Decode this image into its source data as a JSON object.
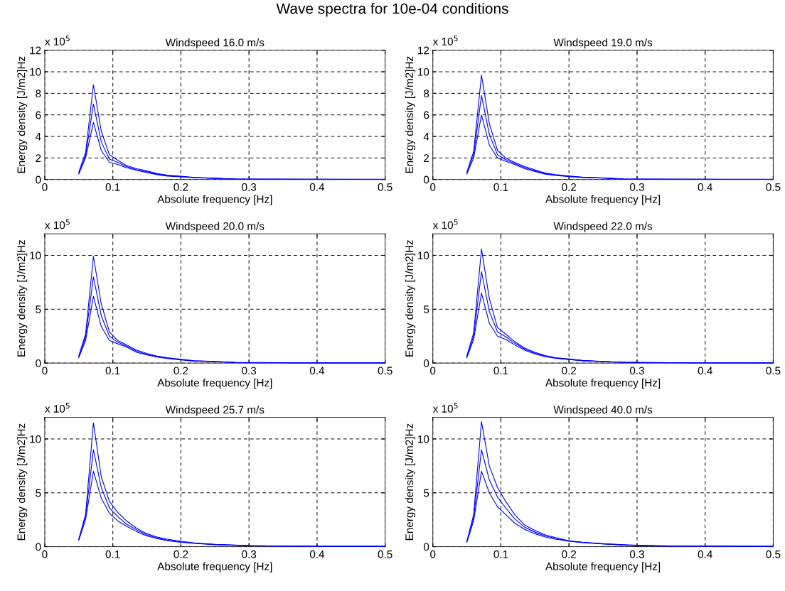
{
  "chart_data": [
    {
      "type": "line",
      "title": "Windspeed 16.0 m/s",
      "xlabel": "Absolute frequency [Hz]",
      "ylabel": "Energy density [J/m2]Hz",
      "annotations": [
        "x 10$^{5}$",
        "Wave spectra for 10e-04 conditions"
      ],
      "x": [
        0.05,
        0.06,
        0.0715,
        0.083,
        0.095,
        0.107,
        0.12,
        0.135,
        0.15,
        0.165,
        0.18,
        0.2,
        0.22,
        0.25,
        0.28,
        0.3,
        0.35,
        0.4,
        0.5
      ],
      "xlim": [
        0,
        0.5
      ],
      "xticks": [
        0,
        0.1,
        0.2,
        0.3,
        0.4,
        0.5
      ],
      "ylim": [
        0,
        12
      ],
      "yticks": [
        0,
        2,
        4,
        6,
        8,
        10,
        12
      ],
      "grid": true,
      "line_style": "solid",
      "series": [
        {
          "color": "#0000ff",
          "values": [
            0.7,
            2.5,
            8.8,
            4.5,
            2.3,
            1.8,
            1.3,
            1.0,
            0.8,
            0.55,
            0.4,
            0.3,
            0.2,
            0.12,
            0.05,
            0.04,
            0.03,
            0.02,
            0.02
          ]
        },
        {
          "color": "#0000ff",
          "values": [
            0.6,
            2.2,
            7.0,
            3.5,
            1.9,
            1.6,
            1.2,
            0.9,
            0.72,
            0.5,
            0.36,
            0.27,
            0.18,
            0.11,
            0.04,
            0.03,
            0.02,
            0.02,
            0.01
          ]
        },
        {
          "color": "#0000ff",
          "values": [
            0.5,
            2.0,
            5.3,
            2.7,
            1.6,
            1.4,
            1.1,
            0.85,
            0.65,
            0.45,
            0.32,
            0.25,
            0.17,
            0.1,
            0.04,
            0.03,
            0.02,
            0.01,
            0.01
          ]
        }
      ]
    },
    {
      "type": "line",
      "title": "Windspeed 19.0 m/s",
      "xlabel": "Absolute frequency [Hz]",
      "ylabel": "Energy density [J/m2]Hz",
      "annotations": [
        "x 10$^{5}$"
      ],
      "x": [
        0.05,
        0.06,
        0.0715,
        0.083,
        0.095,
        0.107,
        0.12,
        0.135,
        0.15,
        0.165,
        0.18,
        0.2,
        0.22,
        0.25,
        0.28,
        0.3,
        0.35,
        0.4,
        0.5
      ],
      "xlim": [
        0,
        0.5
      ],
      "xticks": [
        0,
        0.1,
        0.2,
        0.3,
        0.4,
        0.5
      ],
      "ylim": [
        0,
        12
      ],
      "yticks": [
        0,
        2,
        4,
        6,
        8,
        10,
        12
      ],
      "grid": true,
      "line_style": "solid",
      "series": [
        {
          "color": "#0000ff",
          "values": [
            0.7,
            2.6,
            9.7,
            5.2,
            2.7,
            2.0,
            1.6,
            1.2,
            0.9,
            0.6,
            0.45,
            0.32,
            0.22,
            0.15,
            0.06,
            0.04,
            0.03,
            0.02,
            0.02
          ]
        },
        {
          "color": "#0000ff",
          "values": [
            0.6,
            2.3,
            7.8,
            4.2,
            2.3,
            1.85,
            1.5,
            1.1,
            0.82,
            0.55,
            0.41,
            0.3,
            0.2,
            0.14,
            0.05,
            0.03,
            0.02,
            0.02,
            0.01
          ]
        },
        {
          "color": "#0000ff",
          "values": [
            0.5,
            2.0,
            6.0,
            3.2,
            2.0,
            1.7,
            1.4,
            1.0,
            0.75,
            0.5,
            0.38,
            0.27,
            0.19,
            0.13,
            0.04,
            0.03,
            0.02,
            0.01,
            0.01
          ]
        }
      ]
    },
    {
      "type": "line",
      "title": "Windspeed 20.0 m/s",
      "xlabel": "Absolute frequency [Hz]",
      "ylabel": "Energy density [J/m2]Hz",
      "annotations": [
        "x 10$^{5}$"
      ],
      "x": [
        0.05,
        0.06,
        0.0715,
        0.083,
        0.095,
        0.107,
        0.12,
        0.135,
        0.15,
        0.165,
        0.18,
        0.2,
        0.22,
        0.25,
        0.28,
        0.3,
        0.35,
        0.4,
        0.5
      ],
      "xlim": [
        0,
        0.5
      ],
      "xticks": [
        0,
        0.1,
        0.2,
        0.3,
        0.4,
        0.5
      ],
      "ylim": [
        0,
        12
      ],
      "yticks": [
        0,
        5,
        10
      ],
      "grid": true,
      "line_style": "solid",
      "series": [
        {
          "color": "#0000ff",
          "values": [
            0.7,
            2.7,
            9.9,
            5.5,
            2.9,
            2.1,
            1.7,
            1.2,
            0.9,
            0.65,
            0.5,
            0.35,
            0.22,
            0.15,
            0.07,
            0.05,
            0.04,
            0.03,
            0.02
          ]
        },
        {
          "color": "#0000ff",
          "values": [
            0.6,
            2.4,
            8.0,
            4.4,
            2.5,
            1.95,
            1.6,
            1.1,
            0.82,
            0.6,
            0.46,
            0.32,
            0.2,
            0.14,
            0.06,
            0.04,
            0.03,
            0.02,
            0.02
          ]
        },
        {
          "color": "#0000ff",
          "values": [
            0.5,
            2.1,
            6.2,
            3.4,
            2.1,
            1.8,
            1.5,
            1.0,
            0.75,
            0.55,
            0.42,
            0.3,
            0.18,
            0.13,
            0.05,
            0.04,
            0.03,
            0.02,
            0.01
          ]
        }
      ]
    },
    {
      "type": "line",
      "title": "Windspeed 22.0 m/s",
      "xlabel": "Absolute frequency [Hz]",
      "ylabel": "Energy density [J/m2]Hz",
      "annotations": [
        "x 10$^{5}$"
      ],
      "x": [
        0.05,
        0.06,
        0.0715,
        0.083,
        0.095,
        0.107,
        0.12,
        0.135,
        0.15,
        0.165,
        0.18,
        0.2,
        0.22,
        0.25,
        0.28,
        0.3,
        0.35,
        0.4,
        0.5
      ],
      "xlim": [
        0,
        0.5
      ],
      "xticks": [
        0,
        0.1,
        0.2,
        0.3,
        0.4,
        0.5
      ],
      "ylim": [
        0,
        12
      ],
      "yticks": [
        0,
        5,
        10
      ],
      "grid": true,
      "line_style": "solid",
      "series": [
        {
          "color": "#0000ff",
          "values": [
            0.7,
            2.8,
            10.6,
            6.0,
            3.3,
            2.7,
            2.0,
            1.4,
            1.0,
            0.7,
            0.5,
            0.38,
            0.25,
            0.15,
            0.08,
            0.06,
            0.04,
            0.03,
            0.02
          ]
        },
        {
          "color": "#0000ff",
          "values": [
            0.6,
            2.5,
            8.5,
            4.8,
            2.9,
            2.45,
            1.85,
            1.3,
            0.92,
            0.65,
            0.48,
            0.35,
            0.23,
            0.14,
            0.07,
            0.05,
            0.04,
            0.03,
            0.02
          ]
        },
        {
          "color": "#0000ff",
          "values": [
            0.5,
            2.2,
            6.5,
            3.7,
            2.5,
            2.2,
            1.7,
            1.2,
            0.85,
            0.6,
            0.45,
            0.32,
            0.21,
            0.13,
            0.06,
            0.05,
            0.03,
            0.02,
            0.01
          ]
        }
      ]
    },
    {
      "type": "line",
      "title": "Windspeed 25.7 m/s",
      "xlabel": "Absolute frequency [Hz]",
      "ylabel": "Energy density [J/m2]Hz",
      "annotations": [
        "x 10$^{5}$"
      ],
      "x": [
        0.05,
        0.06,
        0.0715,
        0.083,
        0.095,
        0.107,
        0.12,
        0.135,
        0.15,
        0.165,
        0.18,
        0.2,
        0.22,
        0.25,
        0.28,
        0.3,
        0.35,
        0.4,
        0.5
      ],
      "xlim": [
        0,
        0.5
      ],
      "xticks": [
        0,
        0.1,
        0.2,
        0.3,
        0.4,
        0.5
      ],
      "ylim": [
        0,
        12
      ],
      "yticks": [
        0,
        5,
        10
      ],
      "grid": true,
      "line_style": "solid",
      "series": [
        {
          "color": "#0000ff",
          "values": [
            0.7,
            3.0,
            11.5,
            6.5,
            4.2,
            3.2,
            2.4,
            1.7,
            1.2,
            0.9,
            0.7,
            0.5,
            0.35,
            0.22,
            0.15,
            0.1,
            0.06,
            0.04,
            0.03
          ]
        },
        {
          "color": "#0000ff",
          "values": [
            0.65,
            2.8,
            9.0,
            5.5,
            3.6,
            2.8,
            2.1,
            1.55,
            1.1,
            0.82,
            0.62,
            0.45,
            0.32,
            0.2,
            0.13,
            0.09,
            0.05,
            0.04,
            0.03
          ]
        },
        {
          "color": "#0000ff",
          "values": [
            0.6,
            2.5,
            7.0,
            4.5,
            3.1,
            2.4,
            1.9,
            1.4,
            1.0,
            0.75,
            0.55,
            0.4,
            0.3,
            0.18,
            0.12,
            0.08,
            0.05,
            0.03,
            0.02
          ]
        }
      ]
    },
    {
      "type": "line",
      "title": "Windspeed 40.0 m/s",
      "xlabel": "Absolute frequency [Hz]",
      "ylabel": "Energy density [J/m2]Hz",
      "annotations": [
        "x 10$^{5}$"
      ],
      "x": [
        0.05,
        0.06,
        0.0715,
        0.083,
        0.095,
        0.107,
        0.12,
        0.135,
        0.15,
        0.165,
        0.18,
        0.2,
        0.22,
        0.25,
        0.28,
        0.3,
        0.35,
        0.4,
        0.5
      ],
      "xlim": [
        0,
        0.5
      ],
      "xticks": [
        0,
        0.1,
        0.2,
        0.3,
        0.4,
        0.5
      ],
      "ylim": [
        0,
        12
      ],
      "yticks": [
        0,
        5,
        10
      ],
      "grid": true,
      "line_style": "solid",
      "series": [
        {
          "color": "#0000ff",
          "values": [
            0.5,
            3.0,
            11.6,
            7.5,
            5.5,
            4.2,
            3.0,
            2.0,
            1.5,
            1.1,
            0.85,
            0.55,
            0.42,
            0.28,
            0.18,
            0.13,
            0.07,
            0.05,
            0.03
          ]
        },
        {
          "color": "#0000ff",
          "values": [
            0.45,
            2.7,
            9.0,
            6.2,
            4.6,
            3.6,
            2.6,
            1.8,
            1.35,
            1.0,
            0.78,
            0.52,
            0.4,
            0.26,
            0.16,
            0.11,
            0.06,
            0.04,
            0.03
          ]
        },
        {
          "color": "#0000ff",
          "values": [
            0.4,
            2.4,
            7.0,
            5.0,
            3.7,
            3.0,
            2.2,
            1.6,
            1.2,
            0.9,
            0.7,
            0.5,
            0.38,
            0.25,
            0.15,
            0.1,
            0.05,
            0.04,
            0.02
          ]
        }
      ]
    }
  ]
}
